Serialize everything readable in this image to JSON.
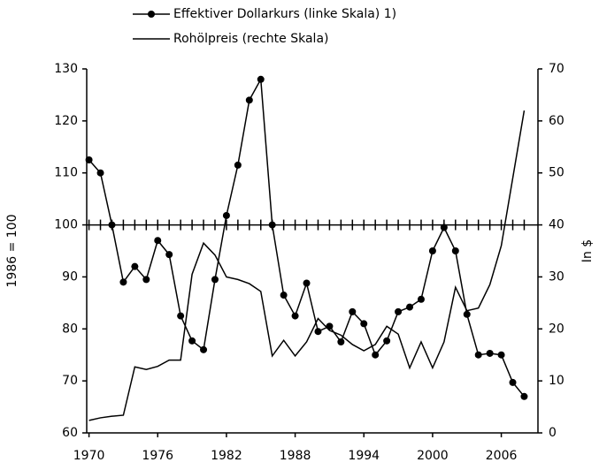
{
  "chart_data": {
    "type": "line",
    "x": [
      1970,
      1971,
      1972,
      1973,
      1974,
      1975,
      1976,
      1977,
      1978,
      1979,
      1980,
      1981,
      1982,
      1983,
      1984,
      1985,
      1986,
      1987,
      1988,
      1989,
      1990,
      1991,
      1992,
      1993,
      1994,
      1995,
      1996,
      1997,
      1998,
      1999,
      2000,
      2001,
      2002,
      2003,
      2004,
      2005,
      2006,
      2007,
      2008
    ],
    "series": [
      {
        "name": "Effektiver Dollarkurs (linke Skala) 1)",
        "color": "#000000",
        "marker": true,
        "axis": "y",
        "values": [
          112.5,
          110,
          100,
          89,
          92,
          89.5,
          97,
          94.3,
          82.5,
          77.7,
          76,
          89.5,
          101.8,
          111.5,
          124,
          128,
          100,
          86.5,
          82.5,
          88.8,
          79.5,
          80.5,
          77.5,
          83.3,
          81,
          75,
          77.7,
          83.3,
          84.2,
          85.7,
          95,
          99.5,
          95,
          82.8,
          75,
          75.3,
          75,
          69.7,
          67
        ]
      },
      {
        "name": "Rohölpreis (rechte Skala)",
        "color": "#000000",
        "marker": false,
        "axis": "y2",
        "values": [
          2.4,
          2.9,
          3.2,
          3.4,
          12.7,
          12.2,
          12.8,
          14,
          14,
          30.5,
          36.5,
          34.2,
          30,
          29.5,
          28.7,
          27.2,
          14.8,
          17.8,
          14.8,
          17.5,
          22,
          19.7,
          18.8,
          17,
          15.8,
          17,
          20.5,
          19,
          12.5,
          17.5,
          12.5,
          17.5,
          28,
          23.5,
          24,
          28.5,
          36,
          49,
          62
        ]
      }
    ],
    "ylabel": "1986 = 100",
    "y2label": "In $",
    "xlim": [
      1969.8,
      2009.2
    ],
    "xticks": [
      1970,
      1976,
      1982,
      1988,
      1994,
      2000,
      2006
    ],
    "ylim": [
      60,
      130
    ],
    "yticks": [
      60,
      70,
      80,
      90,
      100,
      110,
      120,
      130
    ],
    "y2lim": [
      0,
      70
    ],
    "y2ticks": [
      0,
      10,
      20,
      30,
      40,
      50,
      60,
      70
    ],
    "reference_line": 100
  }
}
